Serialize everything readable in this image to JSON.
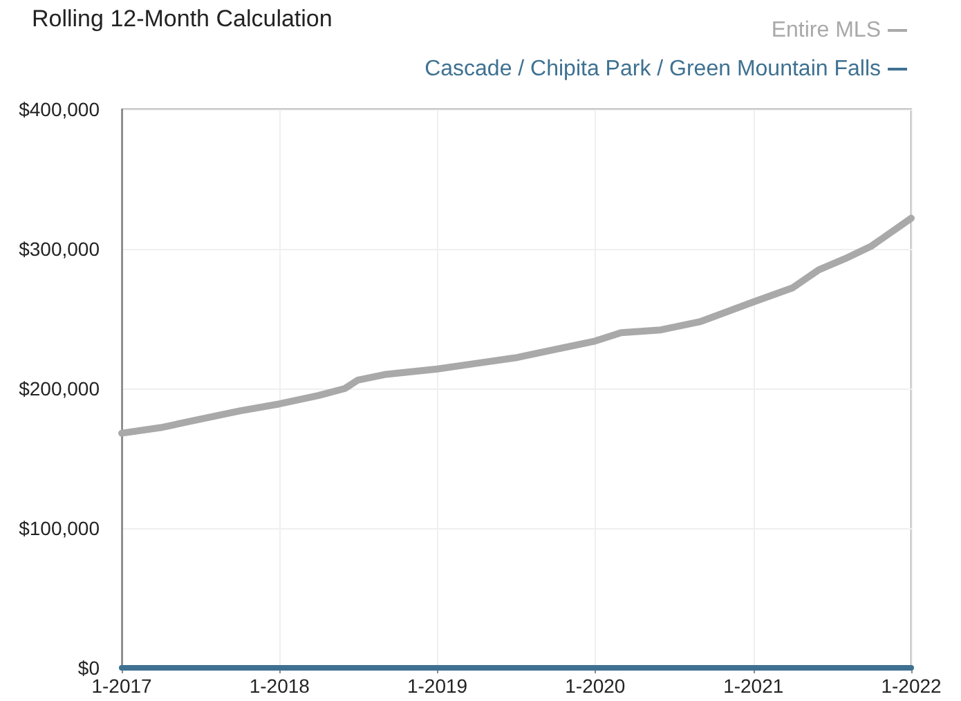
{
  "chart_data": {
    "type": "line",
    "title": "Rolling 12-Month Calculation",
    "legend": "top right",
    "grid": true,
    "marker": "none",
    "xlim": [
      "2017-01",
      "2022-01"
    ],
    "xticks": [
      {
        "value": "2017-01",
        "label": "1-2017"
      },
      {
        "value": "2018-01",
        "label": "1-2018"
      },
      {
        "value": "2019-01",
        "label": "1-2019"
      },
      {
        "value": "2020-01",
        "label": "1-2020"
      },
      {
        "value": "2021-01",
        "label": "1-2021"
      },
      {
        "value": "2022-01",
        "label": "1-2022"
      }
    ],
    "ylim": [
      0,
      400000
    ],
    "yticks": [
      {
        "value": 0,
        "label": "$0"
      },
      {
        "value": 100000,
        "label": "$100,000"
      },
      {
        "value": 200000,
        "label": "$200,000"
      },
      {
        "value": 300000,
        "label": "$300,000"
      },
      {
        "value": 400000,
        "label": "$400,000"
      }
    ],
    "series": [
      {
        "name": "Entire MLS",
        "color": "#a9a9a9",
        "x": [
          "2017-01",
          "2017-04",
          "2017-06",
          "2017-08",
          "2017-10",
          "2018-01",
          "2018-04",
          "2018-06",
          "2018-07",
          "2018-09",
          "2019-01",
          "2019-04",
          "2019-07",
          "2019-10",
          "2020-01",
          "2020-03",
          "2020-06",
          "2020-09",
          "2021-01",
          "2021-04",
          "2021-06",
          "2021-08",
          "2021-10",
          "2022-01"
        ],
        "values": [
          168000,
          172000,
          176000,
          180000,
          184000,
          189000,
          195000,
          200000,
          206000,
          210000,
          214000,
          218000,
          222000,
          228000,
          234000,
          240000,
          242000,
          248000,
          262000,
          272000,
          285000,
          293000,
          302000,
          322000
        ]
      },
      {
        "name": "Cascade / Chipita Park / Green Mountain Falls",
        "color": "#3e7191",
        "x": [
          "2017-01",
          "2022-01"
        ],
        "values": [
          0,
          0
        ]
      }
    ]
  }
}
